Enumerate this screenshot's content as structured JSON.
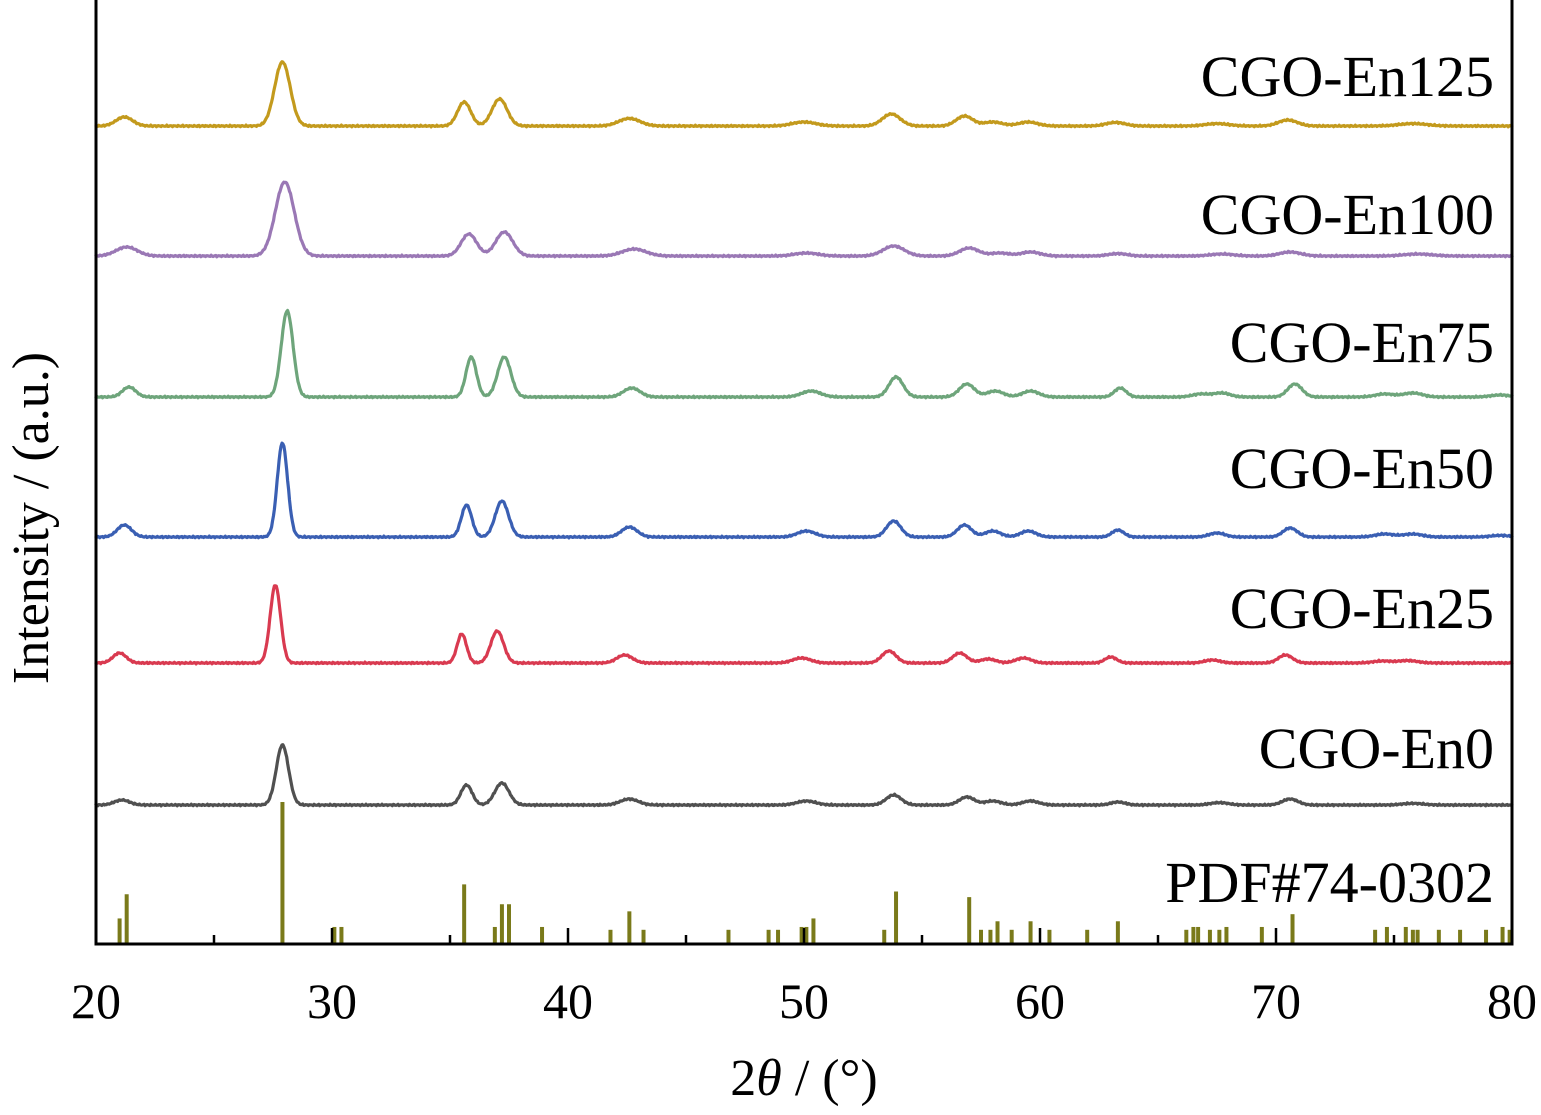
{
  "chart_data": {
    "type": "line",
    "title": "",
    "xlabel": "2θ / (°)",
    "xlabel_parts": {
      "prefix": "2",
      "symbol": "θ",
      "suffix": " / (°)"
    },
    "ylabel": "Intensity / (a.u.)",
    "xlim": [
      20,
      80
    ],
    "x_ticks": [
      20,
      30,
      40,
      50,
      60,
      70,
      80
    ],
    "x_tick_labels": [
      "20",
      "30",
      "40",
      "50",
      "60",
      "70",
      "80"
    ],
    "x_minor_step": 5,
    "y_ticks_shown": false,
    "grid": false,
    "legend": "none; each pattern labelled at right above its trace",
    "series": [
      {
        "name": "CGO-En125",
        "color": "#c39a1d",
        "baseline": 5,
        "noise": 0.045,
        "peaks": [
          [
            21.2,
            0.45,
            0.35
          ],
          [
            27.9,
            3.2,
            0.33
          ],
          [
            35.6,
            1.2,
            0.28
          ],
          [
            37.1,
            1.35,
            0.32
          ],
          [
            42.6,
            0.38,
            0.45
          ],
          [
            50.0,
            0.2,
            0.5
          ],
          [
            53.7,
            0.6,
            0.38
          ],
          [
            56.8,
            0.5,
            0.35
          ],
          [
            58.0,
            0.2,
            0.4
          ],
          [
            59.5,
            0.2,
            0.4
          ],
          [
            63.2,
            0.18,
            0.4
          ],
          [
            67.5,
            0.12,
            0.5
          ],
          [
            70.5,
            0.3,
            0.4
          ],
          [
            75.8,
            0.12,
            0.6
          ]
        ]
      },
      {
        "name": "CGO-En100",
        "color": "#9a78b5",
        "baseline": 4,
        "noise": 0.045,
        "peaks": [
          [
            21.3,
            0.45,
            0.45
          ],
          [
            28.0,
            3.7,
            0.4
          ],
          [
            35.8,
            1.1,
            0.33
          ],
          [
            37.3,
            1.2,
            0.36
          ],
          [
            42.8,
            0.35,
            0.5
          ],
          [
            50.1,
            0.15,
            0.5
          ],
          [
            53.8,
            0.5,
            0.45
          ],
          [
            57.0,
            0.4,
            0.4
          ],
          [
            58.3,
            0.15,
            0.4
          ],
          [
            59.6,
            0.2,
            0.4
          ],
          [
            63.3,
            0.12,
            0.4
          ],
          [
            67.7,
            0.1,
            0.5
          ],
          [
            70.6,
            0.2,
            0.45
          ],
          [
            76.0,
            0.1,
            0.6
          ]
        ]
      },
      {
        "name": "CGO-En75",
        "color": "#6ea57b",
        "baseline": 3,
        "noise": 0.045,
        "peaks": [
          [
            21.4,
            0.5,
            0.28
          ],
          [
            28.1,
            4.3,
            0.25
          ],
          [
            35.9,
            2.0,
            0.22
          ],
          [
            37.3,
            2.0,
            0.28
          ],
          [
            42.7,
            0.45,
            0.35
          ],
          [
            50.3,
            0.3,
            0.4
          ],
          [
            53.9,
            1.0,
            0.3
          ],
          [
            56.9,
            0.65,
            0.32
          ],
          [
            58.1,
            0.3,
            0.35
          ],
          [
            59.6,
            0.3,
            0.35
          ],
          [
            63.4,
            0.45,
            0.25
          ],
          [
            66.8,
            0.15,
            0.35
          ],
          [
            67.7,
            0.2,
            0.35
          ],
          [
            70.8,
            0.65,
            0.3
          ],
          [
            74.6,
            0.15,
            0.4
          ],
          [
            75.8,
            0.2,
            0.4
          ],
          [
            79.5,
            0.1,
            0.4
          ]
        ]
      },
      {
        "name": "CGO-En50",
        "color": "#3a5fb3",
        "baseline": 2,
        "noise": 0.045,
        "peaks": [
          [
            21.2,
            0.6,
            0.3
          ],
          [
            27.9,
            4.7,
            0.22
          ],
          [
            35.7,
            1.6,
            0.22
          ],
          [
            37.2,
            1.8,
            0.28
          ],
          [
            42.6,
            0.5,
            0.33
          ],
          [
            50.1,
            0.3,
            0.38
          ],
          [
            53.8,
            0.8,
            0.3
          ],
          [
            56.8,
            0.6,
            0.3
          ],
          [
            58.0,
            0.3,
            0.33
          ],
          [
            59.5,
            0.3,
            0.33
          ],
          [
            63.3,
            0.35,
            0.25
          ],
          [
            67.5,
            0.2,
            0.33
          ],
          [
            70.6,
            0.45,
            0.3
          ],
          [
            74.6,
            0.15,
            0.4
          ],
          [
            75.8,
            0.15,
            0.4
          ],
          [
            79.5,
            0.08,
            0.4
          ]
        ]
      },
      {
        "name": "CGO-En25",
        "color": "#d93a50",
        "baseline": 1,
        "noise": 0.045,
        "peaks": [
          [
            21.0,
            0.5,
            0.28
          ],
          [
            27.6,
            3.9,
            0.22
          ],
          [
            35.5,
            1.45,
            0.2
          ],
          [
            37.0,
            1.6,
            0.27
          ],
          [
            42.4,
            0.4,
            0.33
          ],
          [
            49.9,
            0.25,
            0.38
          ],
          [
            53.6,
            0.6,
            0.3
          ],
          [
            56.6,
            0.5,
            0.3
          ],
          [
            57.8,
            0.2,
            0.33
          ],
          [
            59.3,
            0.25,
            0.33
          ],
          [
            63.0,
            0.3,
            0.25
          ],
          [
            67.3,
            0.15,
            0.33
          ],
          [
            70.4,
            0.4,
            0.3
          ],
          [
            74.5,
            0.1,
            0.4
          ],
          [
            75.6,
            0.12,
            0.4
          ]
        ]
      },
      {
        "name": "CGO-En0",
        "color": "#505050",
        "baseline": 0,
        "noise": 0.045,
        "peaks": [
          [
            21.1,
            0.25,
            0.32
          ],
          [
            27.9,
            3.0,
            0.26
          ],
          [
            35.7,
            1.0,
            0.24
          ],
          [
            37.2,
            1.1,
            0.3
          ],
          [
            42.6,
            0.3,
            0.38
          ],
          [
            50.1,
            0.2,
            0.4
          ],
          [
            53.8,
            0.5,
            0.32
          ],
          [
            56.9,
            0.4,
            0.32
          ],
          [
            58.0,
            0.2,
            0.35
          ],
          [
            59.6,
            0.2,
            0.35
          ],
          [
            63.3,
            0.15,
            0.3
          ],
          [
            67.6,
            0.12,
            0.38
          ],
          [
            70.6,
            0.3,
            0.33
          ],
          [
            75.8,
            0.08,
            0.45
          ]
        ]
      }
    ],
    "reference": {
      "name": "PDF#74-0302",
      "color": "#7a7a1a",
      "sticks": [
        [
          21.0,
          18
        ],
        [
          21.3,
          35
        ],
        [
          27.9,
          100
        ],
        [
          30.1,
          12
        ],
        [
          30.4,
          12
        ],
        [
          35.6,
          42
        ],
        [
          36.9,
          12
        ],
        [
          37.2,
          28
        ],
        [
          37.5,
          28
        ],
        [
          38.9,
          12
        ],
        [
          41.8,
          10
        ],
        [
          42.6,
          23
        ],
        [
          43.2,
          10
        ],
        [
          46.8,
          10
        ],
        [
          48.5,
          10
        ],
        [
          48.9,
          10
        ],
        [
          49.9,
          12
        ],
        [
          50.1,
          12
        ],
        [
          50.4,
          18
        ],
        [
          53.4,
          10
        ],
        [
          53.9,
          37
        ],
        [
          57.0,
          33
        ],
        [
          57.5,
          10
        ],
        [
          57.9,
          10
        ],
        [
          58.2,
          16
        ],
        [
          58.8,
          10
        ],
        [
          59.6,
          16
        ],
        [
          60.4,
          10
        ],
        [
          62.0,
          10
        ],
        [
          63.3,
          16
        ],
        [
          66.2,
          10
        ],
        [
          66.5,
          12
        ],
        [
          66.7,
          12
        ],
        [
          67.2,
          10
        ],
        [
          67.6,
          10
        ],
        [
          67.9,
          12
        ],
        [
          69.4,
          12
        ],
        [
          70.7,
          21
        ],
        [
          74.2,
          10
        ],
        [
          74.7,
          12
        ],
        [
          75.5,
          12
        ],
        [
          75.8,
          10
        ],
        [
          76.0,
          10
        ],
        [
          76.9,
          10
        ],
        [
          77.8,
          10
        ],
        [
          78.9,
          10
        ],
        [
          79.6,
          12
        ],
        [
          79.9,
          10
        ]
      ]
    }
  }
}
